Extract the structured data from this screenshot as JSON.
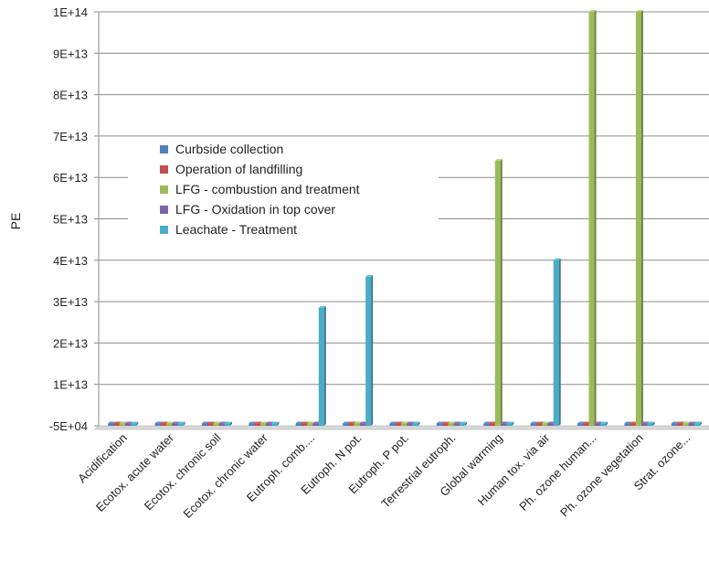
{
  "chart_data": {
    "type": "bar",
    "title": "",
    "xlabel": "",
    "ylabel": "PE",
    "ylim": [
      -50000,
      100000000000000
    ],
    "y_ticks": [
      {
        "value": -50000,
        "label": "-5E+04"
      },
      {
        "value": 10000000000000,
        "label": "1E+13"
      },
      {
        "value": 20000000000000,
        "label": "2E+13"
      },
      {
        "value": 30000000000000,
        "label": "3E+13"
      },
      {
        "value": 40000000000000,
        "label": "4E+13"
      },
      {
        "value": 50000000000000,
        "label": "5E+13"
      },
      {
        "value": 60000000000000,
        "label": "6E+13"
      },
      {
        "value": 70000000000000,
        "label": "7E+13"
      },
      {
        "value": 80000000000000,
        "label": "8E+13"
      },
      {
        "value": 90000000000000,
        "label": "9E+13"
      },
      {
        "value": 100000000000000,
        "label": "1E+14"
      }
    ],
    "grid": true,
    "legend_position": "left-center",
    "categories": [
      "Acidification",
      "Ecotox. acute water",
      "Ecotox. chronic soil",
      "Ecotox. chronic water",
      "Eutroph. comb....",
      "Eutroph. N pot.",
      "Eutroph. P pot.",
      "Terrestrial eutroph.",
      "Global warming",
      "Human tox. via air",
      "Ph. ozone human...",
      "Ph. ozone vegetation",
      "Strat. ozone..."
    ],
    "series": [
      {
        "name": "Curbside collection",
        "color": "#4f81bd",
        "values": [
          0,
          0,
          0,
          0,
          0,
          0,
          0,
          0,
          0,
          0,
          0,
          0,
          0
        ]
      },
      {
        "name": "Operation of landfilling",
        "color": "#c0504d",
        "values": [
          0,
          0,
          0,
          0,
          0,
          0,
          0,
          0,
          0,
          0,
          0,
          0,
          0
        ]
      },
      {
        "name": "LFG - combustion and treatment",
        "color": "#9bbb59",
        "values": [
          0,
          0,
          0,
          0,
          0,
          0,
          0,
          0,
          64000000000000,
          0,
          100000000000000,
          100000000000000,
          0
        ]
      },
      {
        "name": "LFG - Oxidation in top cover",
        "color": "#8064a2",
        "values": [
          0,
          0,
          0,
          0,
          0,
          0,
          0,
          0,
          0,
          0,
          0,
          0,
          0
        ]
      },
      {
        "name": "Leachate - Treatment",
        "color": "#4bacc6",
        "values": [
          0,
          0,
          0,
          0,
          28500000000000,
          36000000000000,
          0,
          0,
          0,
          40000000000000,
          0,
          0,
          0
        ]
      }
    ]
  }
}
